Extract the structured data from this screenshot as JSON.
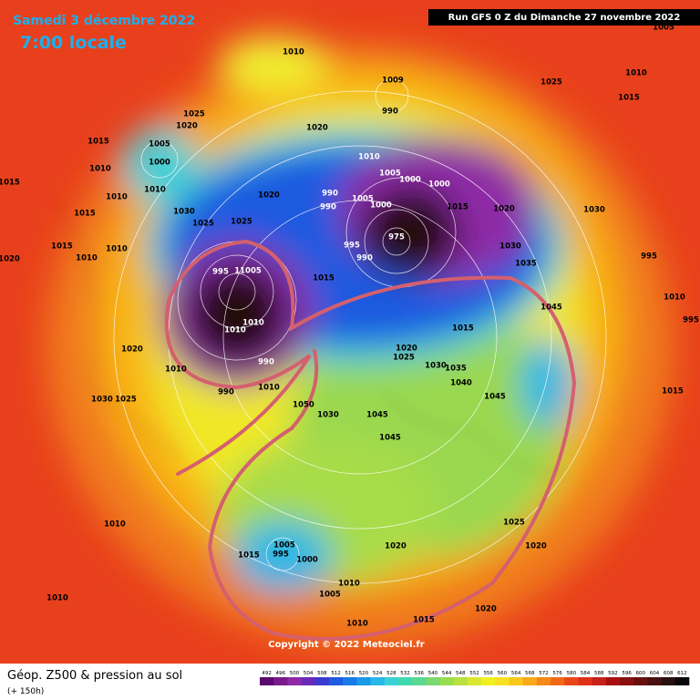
{
  "header": {
    "date": "Samedi 3 décembre 2022",
    "time": "7:00 locale",
    "run": "Run GFS 0 Z du Dimanche 27 novembre 2022"
  },
  "footer": {
    "title": "Géop. Z500 & pression au sol",
    "lead": "(+ 150h)",
    "copyright": "Copyright © 2022 Meteociel.fr"
  },
  "pressure_labels": [
    "1010",
    "1009",
    "990",
    "1025",
    "1015",
    "1010",
    "1005",
    "1025",
    "1020",
    "1015",
    "1005",
    "1000",
    "1010",
    "1010",
    "1010",
    "1015",
    "1030",
    "1025",
    "1025",
    "1020",
    "1020",
    "1010",
    "1005",
    "1000",
    "1005",
    "1000",
    "1000",
    "990",
    "990",
    "1015",
    "1020",
    "1030",
    "975",
    "995",
    "990",
    "1030",
    "1035",
    "1015",
    "995",
    "11005",
    "1015",
    "1015",
    "1010",
    "1010",
    "1020",
    "995",
    "1010",
    "1010",
    "1045",
    "1010",
    "995",
    "1020",
    "990",
    "1010",
    "990",
    "1010",
    "1050",
    "1030",
    "1030",
    "1025",
    "1015",
    "1020",
    "1025",
    "1030",
    "1035",
    "1040",
    "1045",
    "1045",
    "1045",
    "1015",
    "1010",
    "1015",
    "1005",
    "995",
    "1000",
    "1020",
    "1025",
    "1020",
    "1010",
    "1005",
    "1010",
    "1020",
    "1015",
    "1010"
  ],
  "legend": {
    "values": [
      492,
      496,
      500,
      504,
      508,
      512,
      516,
      520,
      524,
      528,
      532,
      536,
      540,
      544,
      548,
      552,
      556,
      560,
      564,
      568,
      572,
      576,
      580,
      584,
      588,
      592,
      596,
      600,
      604,
      608,
      612
    ],
    "colors": [
      "#5a0a6e",
      "#7a1a8c",
      "#8e2aa6",
      "#6a2ab8",
      "#3b3bd0",
      "#1f5ae0",
      "#1a7ae8",
      "#1a9ae8",
      "#26b8e6",
      "#3ad0d8",
      "#40d8b0",
      "#5ad890",
      "#7ad870",
      "#98dc50",
      "#b8e040",
      "#d8e830",
      "#f0f020",
      "#f8e020",
      "#f8c818",
      "#f8a818",
      "#f88818",
      "#f06818",
      "#e84818",
      "#e03018",
      "#c82018",
      "#a81010",
      "#881010",
      "#681010",
      "#481010",
      "#281010",
      "#080808"
    ]
  }
}
